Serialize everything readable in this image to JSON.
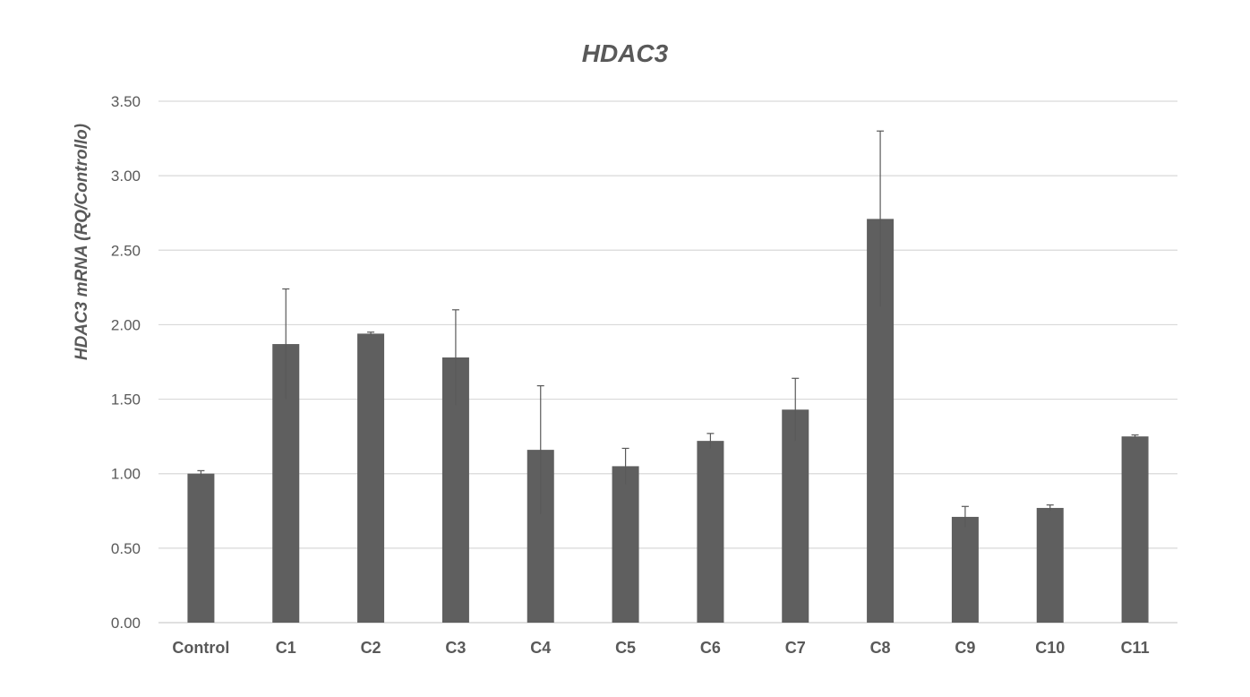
{
  "chart_data": {
    "type": "bar",
    "title": "HDAC3",
    "xlabel": "",
    "ylabel": "HDAC3 mRNA (RQ/Controllo)",
    "categories": [
      "Control",
      "C1",
      "C2",
      "C3",
      "C4",
      "C5",
      "C6",
      "C7",
      "C8",
      "C9",
      "C10",
      "C11"
    ],
    "series": [
      {
        "name": "",
        "values": [
          1.0,
          1.87,
          1.94,
          1.78,
          1.16,
          1.05,
          1.22,
          1.43,
          2.71,
          0.71,
          0.77,
          1.25
        ],
        "errors": [
          0.02,
          0.37,
          0.01,
          0.32,
          0.43,
          0.12,
          0.05,
          0.21,
          0.59,
          0.07,
          0.02,
          0.01
        ]
      }
    ],
    "ylim": [
      0,
      3.5
    ],
    "yticks": [
      "0.00",
      "0.50",
      "1.00",
      "1.50",
      "2.00",
      "2.50",
      "3.00",
      "3.50"
    ],
    "grid": true,
    "legend": "none",
    "bar_color": "#5f5f5f",
    "grid_color": "#d9d9d9",
    "text_color": "#595959"
  }
}
